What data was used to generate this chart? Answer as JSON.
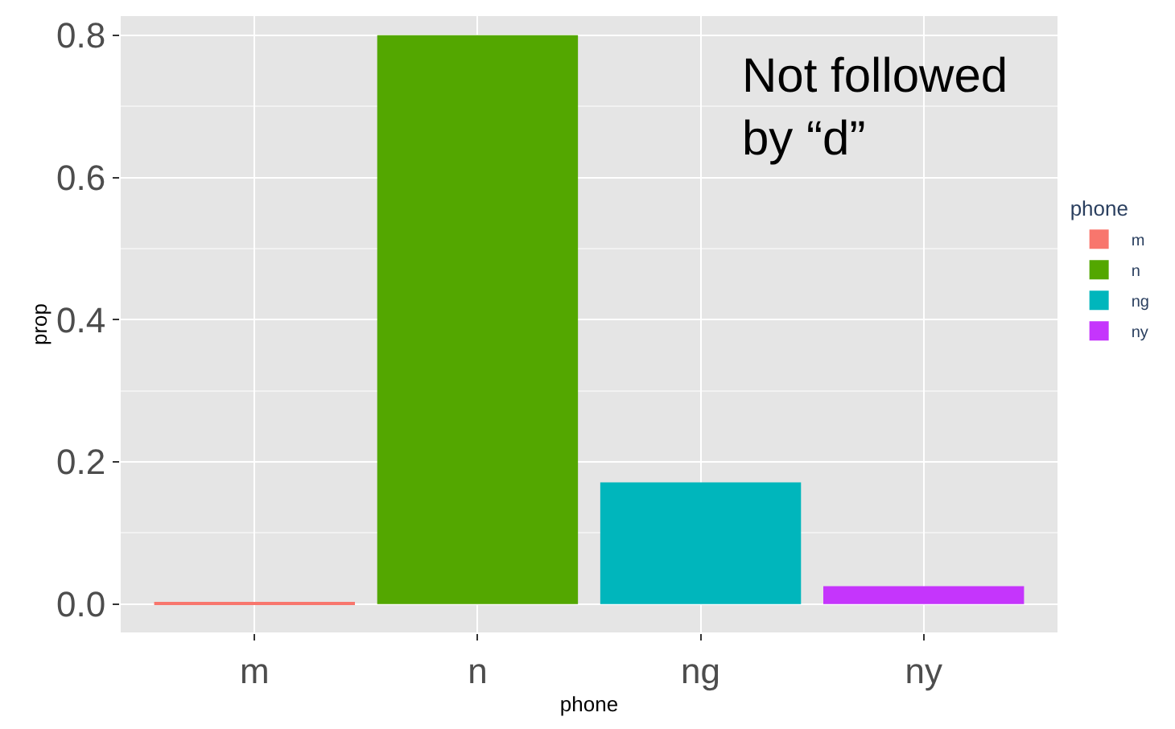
{
  "chart_data": {
    "type": "bar",
    "xlabel": "phone",
    "ylabel": "prop",
    "categories": [
      "m",
      "n",
      "ng",
      "ny"
    ],
    "series": [
      {
        "name": "m",
        "color": "#f8766d",
        "values": [
          0.001,
          null,
          null,
          null
        ]
      },
      {
        "name": "n",
        "color": "#53a700",
        "values": [
          null,
          0.8,
          null,
          null
        ]
      },
      {
        "name": "ng",
        "color": "#00b6bc",
        "values": [
          null,
          null,
          0.171,
          null
        ]
      },
      {
        "name": "ny",
        "color": "#c535fc",
        "values": [
          null,
          null,
          null,
          0.025
        ]
      }
    ],
    "ylim": [
      -0.04,
      0.827
    ],
    "yticks": [
      {
        "value": 0,
        "label": "0.0"
      },
      0.2,
      0.4,
      0.6,
      0.8
    ],
    "grid": true,
    "legend": "right",
    "legend_title": "phone",
    "annotations": [
      "Not followed\nby “d”"
    ]
  }
}
